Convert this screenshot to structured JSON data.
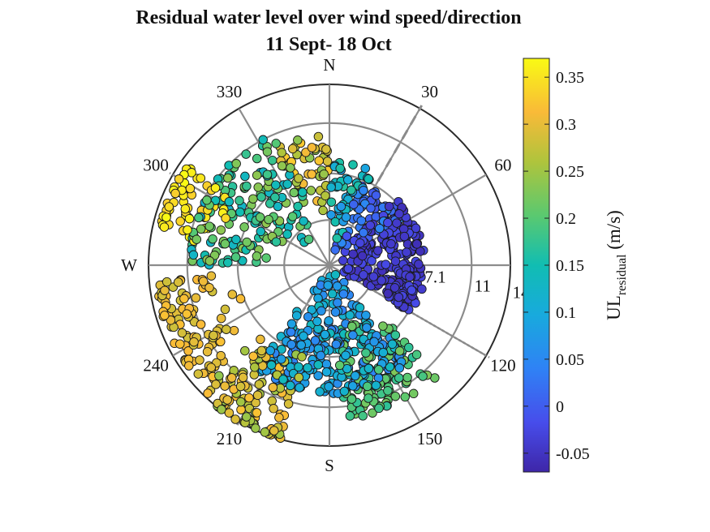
{
  "chart_data": {
    "type": "scatter",
    "subtype": "polar",
    "title": "Residual water level over wind speed/direction",
    "subtitle": "11 Sept- 18 Oct",
    "angular_axis": {
      "zero_direction": "north",
      "rotation": "clockwise",
      "tick_angles": [
        0,
        30,
        60,
        90,
        120,
        150,
        180,
        210,
        240,
        270,
        300,
        330
      ],
      "tick_labels": [
        "N",
        "30",
        "60",
        "",
        "120",
        "150",
        "S",
        "210",
        "240",
        "W",
        "300",
        "330"
      ]
    },
    "radial_axis": {
      "rlim": [
        0,
        14
      ],
      "ticks": [
        3.5,
        7.1,
        11,
        14
      ],
      "tick_labels": [
        "",
        "7.1",
        "11",
        "14"
      ],
      "label_direction_deg": 100
    },
    "reference_lines": [
      {
        "direction_deg": 30,
        "style": "dashed"
      },
      {
        "direction_deg": 120,
        "style": "dotted"
      }
    ],
    "colorbar": {
      "label": "UL",
      "label_subscript": "residual",
      "label_suffix": " (m/s)",
      "range": [
        -0.07,
        0.37
      ],
      "ticks": [
        -0.05,
        0,
        0.05,
        0.1,
        0.15,
        0.2,
        0.25,
        0.3,
        0.35
      ],
      "tick_labels": [
        "-0.05",
        "0",
        "0.05",
        "0.1",
        "0.15",
        "0.2",
        "0.25",
        "0.3",
        "0.35"
      ],
      "colormap": "parula"
    },
    "clusters": [
      {
        "dir_range": [
          45,
          120
        ],
        "speed_range": [
          0.5,
          7.4
        ],
        "value": -0.04,
        "spread": 0.02,
        "count": 220
      },
      {
        "dir_range": [
          20,
          60
        ],
        "speed_range": [
          1,
          7
        ],
        "value": 0.02,
        "spread": 0.03,
        "count": 60
      },
      {
        "dir_range": [
          140,
          215
        ],
        "speed_range": [
          0.5,
          10
        ],
        "value": 0.09,
        "spread": 0.05,
        "count": 280
      },
      {
        "dir_range": [
          135,
          175
        ],
        "speed_range": [
          4,
          12
        ],
        "value": 0.2,
        "spread": 0.03,
        "count": 110
      },
      {
        "dir_range": [
          195,
          225
        ],
        "speed_range": [
          7,
          14
        ],
        "value": 0.28,
        "spread": 0.04,
        "count": 110
      },
      {
        "dir_range": [
          225,
          265
        ],
        "speed_range": [
          7,
          13.5
        ],
        "value": 0.3,
        "spread": 0.02,
        "count": 100
      },
      {
        "dir_range": [
          280,
          305
        ],
        "speed_range": [
          8,
          13.5
        ],
        "value": 0.35,
        "spread": 0.02,
        "count": 60
      },
      {
        "dir_range": [
          270,
          340
        ],
        "speed_range": [
          2,
          11
        ],
        "value": 0.18,
        "spread": 0.06,
        "count": 160
      },
      {
        "dir_range": [
          335,
          360
        ],
        "speed_range": [
          4,
          10
        ],
        "value": 0.28,
        "spread": 0.05,
        "count": 50
      },
      {
        "dir_range": [
          0,
          25
        ],
        "speed_range": [
          1,
          8
        ],
        "value": 0.12,
        "spread": 0.05,
        "count": 50
      }
    ]
  }
}
